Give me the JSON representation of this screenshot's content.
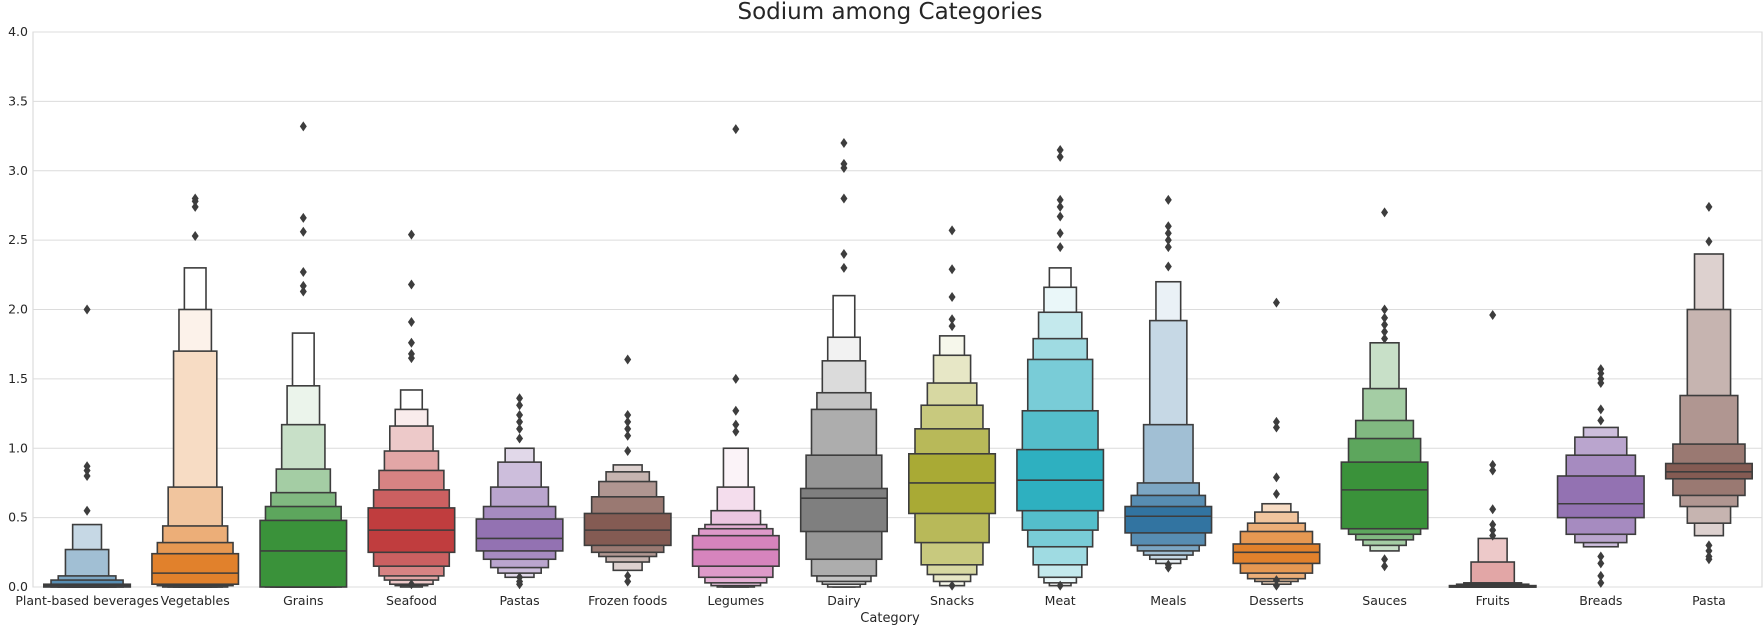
{
  "chart_data": {
    "type": "boxen",
    "title": "Sodium among Categories",
    "xlabel": "Category",
    "ylabel": "",
    "ylim": [
      0,
      4.0
    ],
    "yticks": [
      "0.0",
      "0.5",
      "1.0",
      "1.5",
      "2.0",
      "2.5",
      "3.0",
      "3.5",
      "4.0"
    ],
    "grid": true,
    "legend": "none",
    "categories": [
      {
        "name": "Plant-based beverages",
        "color": "#3274a1",
        "median": 0.01,
        "levels": [
          [
            0.0,
            0.02
          ],
          [
            0.0,
            0.05
          ],
          [
            0.0,
            0.08
          ],
          [
            0.0,
            0.27
          ],
          [
            0.0,
            0.45
          ]
        ],
        "outliers": [
          0.55,
          0.8,
          0.84,
          0.87,
          2.0
        ]
      },
      {
        "name": "Vegetables",
        "color": "#e1812c",
        "median": 0.1,
        "levels": [
          [
            0.02,
            0.24
          ],
          [
            0.01,
            0.32
          ],
          [
            0.0,
            0.44
          ],
          [
            0.0,
            0.72
          ],
          [
            0.0,
            1.7
          ],
          [
            0.0,
            2.0
          ],
          [
            0.0,
            2.3
          ]
        ],
        "outliers": [
          2.53,
          2.74,
          2.78,
          2.8
        ]
      },
      {
        "name": "Grains",
        "color": "#3a923a",
        "median": 0.26,
        "levels": [
          [
            0.0,
            0.48
          ],
          [
            0.0,
            0.58
          ],
          [
            0.0,
            0.68
          ],
          [
            0.0,
            0.85
          ],
          [
            0.0,
            1.17
          ],
          [
            0.0,
            1.45
          ],
          [
            0.0,
            1.83
          ]
        ],
        "outliers": [
          2.13,
          2.17,
          2.27,
          2.56,
          2.66,
          3.32
        ]
      },
      {
        "name": "Seafood",
        "color": "#c03d3e",
        "median": 0.41,
        "levels": [
          [
            0.25,
            0.57
          ],
          [
            0.15,
            0.7
          ],
          [
            0.08,
            0.84
          ],
          [
            0.05,
            0.98
          ],
          [
            0.02,
            1.16
          ],
          [
            0.01,
            1.28
          ],
          [
            0.0,
            1.42
          ]
        ],
        "outliers": [
          0.02,
          1.65,
          1.68,
          1.76,
          1.91,
          2.18,
          2.54
        ]
      },
      {
        "name": "Pastas",
        "color": "#9372b2",
        "median": 0.35,
        "levels": [
          [
            0.26,
            0.49
          ],
          [
            0.2,
            0.58
          ],
          [
            0.14,
            0.72
          ],
          [
            0.1,
            0.9
          ],
          [
            0.07,
            1.0
          ]
        ],
        "outliers": [
          0.02,
          0.04,
          0.07,
          1.07,
          1.14,
          1.19,
          1.24,
          1.31,
          1.36
        ]
      },
      {
        "name": "Frozen foods",
        "color": "#845b53",
        "median": 0.41,
        "levels": [
          [
            0.3,
            0.53
          ],
          [
            0.25,
            0.65
          ],
          [
            0.22,
            0.76
          ],
          [
            0.18,
            0.83
          ],
          [
            0.12,
            0.88
          ]
        ],
        "outliers": [
          0.04,
          0.08,
          0.98,
          1.09,
          1.14,
          1.19,
          1.24,
          1.64
        ]
      },
      {
        "name": "Legumes",
        "color": "#d684bd",
        "median": 0.27,
        "levels": [
          [
            0.15,
            0.37
          ],
          [
            0.07,
            0.42
          ],
          [
            0.03,
            0.45
          ],
          [
            0.01,
            0.55
          ],
          [
            0.0,
            0.72
          ],
          [
            0.0,
            1.0
          ]
        ],
        "outliers": [
          1.12,
          1.17,
          1.27,
          1.5,
          3.3
        ]
      },
      {
        "name": "Dairy",
        "color": "#7f7f7f",
        "median": 0.64,
        "levels": [
          [
            0.4,
            0.71
          ],
          [
            0.2,
            0.95
          ],
          [
            0.08,
            1.28
          ],
          [
            0.04,
            1.4
          ],
          [
            0.02,
            1.63
          ],
          [
            0.0,
            1.8
          ],
          [
            0.0,
            2.1
          ]
        ],
        "outliers": [
          2.3,
          2.4,
          2.8,
          3.02,
          3.05,
          3.2
        ]
      },
      {
        "name": "Snacks",
        "color": "#a9aa35",
        "median": 0.75,
        "levels": [
          [
            0.53,
            0.96
          ],
          [
            0.32,
            1.14
          ],
          [
            0.16,
            1.31
          ],
          [
            0.09,
            1.47
          ],
          [
            0.04,
            1.67
          ],
          [
            0.01,
            1.81
          ]
        ],
        "outliers": [
          0.01,
          1.88,
          1.93,
          2.09,
          2.29,
          2.57
        ]
      },
      {
        "name": "Meat",
        "color": "#2eb0c0",
        "median": 0.77,
        "levels": [
          [
            0.55,
            0.99
          ],
          [
            0.41,
            1.27
          ],
          [
            0.29,
            1.64
          ],
          [
            0.16,
            1.79
          ],
          [
            0.07,
            1.98
          ],
          [
            0.03,
            2.16
          ],
          [
            0.01,
            2.3
          ]
        ],
        "outliers": [
          0.01,
          2.45,
          2.55,
          2.67,
          2.74,
          2.79,
          3.1,
          3.15
        ]
      },
      {
        "name": "Meals",
        "color": "#3274a1",
        "median": 0.51,
        "levels": [
          [
            0.39,
            0.58
          ],
          [
            0.3,
            0.66
          ],
          [
            0.26,
            0.75
          ],
          [
            0.23,
            1.17
          ],
          [
            0.2,
            1.92
          ],
          [
            0.17,
            2.2
          ]
        ],
        "outliers": [
          0.14,
          0.16,
          2.31,
          2.45,
          2.5,
          2.55,
          2.6,
          2.79
        ]
      },
      {
        "name": "Desserts",
        "color": "#e1812c",
        "median": 0.25,
        "levels": [
          [
            0.17,
            0.31
          ],
          [
            0.1,
            0.4
          ],
          [
            0.06,
            0.46
          ],
          [
            0.04,
            0.54
          ],
          [
            0.02,
            0.6
          ]
        ],
        "outliers": [
          0.01,
          0.05,
          0.67,
          0.79,
          1.15,
          1.19,
          2.05
        ]
      },
      {
        "name": "Sauces",
        "color": "#3a923a",
        "median": 0.7,
        "levels": [
          [
            0.42,
            0.9
          ],
          [
            0.38,
            1.07
          ],
          [
            0.34,
            1.2
          ],
          [
            0.3,
            1.43
          ],
          [
            0.26,
            1.76
          ]
        ],
        "outliers": [
          0.15,
          0.2,
          1.79,
          1.84,
          1.89,
          1.94,
          2.0,
          2.7
        ]
      },
      {
        "name": "Fruits",
        "color": "#c03d3e",
        "median": 0.0,
        "levels": [
          [
            0.0,
            0.01
          ],
          [
            0.0,
            0.02
          ],
          [
            0.0,
            0.03
          ],
          [
            0.0,
            0.18
          ],
          [
            0.0,
            0.35
          ]
        ],
        "outliers": [
          0.37,
          0.41,
          0.45,
          0.56,
          0.84,
          0.88,
          1.96
        ]
      },
      {
        "name": "Breads",
        "color": "#9372b2",
        "median": 0.6,
        "levels": [
          [
            0.5,
            0.8
          ],
          [
            0.38,
            0.95
          ],
          [
            0.32,
            1.08
          ],
          [
            0.29,
            1.15
          ]
        ],
        "outliers": [
          0.03,
          0.08,
          0.17,
          0.22,
          1.2,
          1.28,
          1.47,
          1.5,
          1.54,
          1.57
        ]
      },
      {
        "name": "Pasta",
        "color": "#845b53",
        "median": 0.83,
        "levels": [
          [
            0.78,
            0.89
          ],
          [
            0.66,
            1.03
          ],
          [
            0.58,
            1.38
          ],
          [
            0.46,
            2.0
          ],
          [
            0.37,
            2.4
          ]
        ],
        "outliers": [
          0.2,
          0.22,
          0.26,
          0.3,
          2.49,
          2.74
        ]
      }
    ]
  }
}
